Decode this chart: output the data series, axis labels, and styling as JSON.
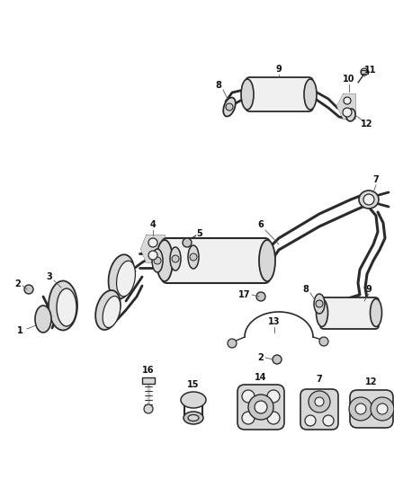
{
  "bg_color": "#ffffff",
  "line_color": "#2a2a2a",
  "fig_width": 4.38,
  "fig_height": 5.33,
  "dpi": 100,
  "gray_fill": "#d8d8d8",
  "light_fill": "#f0f0f0",
  "mid_fill": "#c8c8c8",
  "dark_fill": "#a0a0a0"
}
